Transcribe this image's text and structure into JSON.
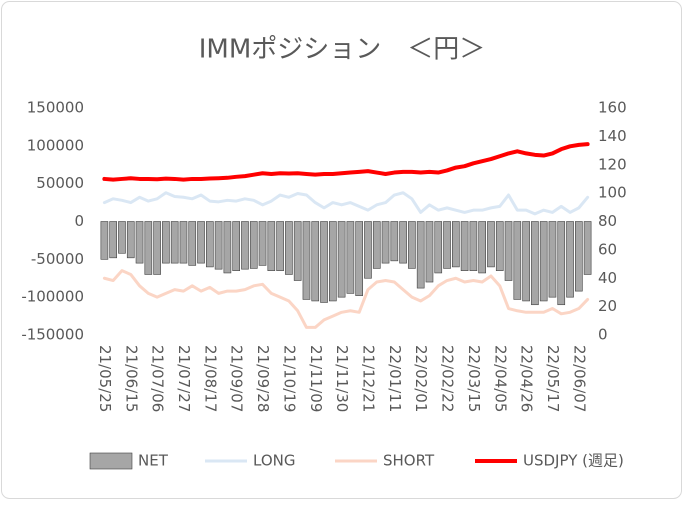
{
  "chart_data": {
    "type": "combo",
    "title": "IMMポジション　＜円＞",
    "categories": [
      "21/05/25",
      null,
      null,
      "21/06/15",
      null,
      null,
      "21/07/06",
      null,
      null,
      "21/07/27",
      null,
      null,
      "21/08/17",
      null,
      null,
      "21/09/07",
      null,
      null,
      "21/09/28",
      null,
      null,
      "21/10/19",
      null,
      null,
      "21/11/09",
      null,
      null,
      "21/11/30",
      null,
      null,
      "21/12/21",
      null,
      null,
      "22/01/11",
      null,
      null,
      "22/02/01",
      null,
      null,
      "22/02/22",
      null,
      null,
      "22/03/15",
      null,
      null,
      "22/04/05",
      null,
      null,
      "22/04/26",
      null,
      null,
      "22/05/17",
      null,
      null,
      "22/06/07",
      null
    ],
    "series": [
      {
        "name": "NET",
        "type": "bar",
        "color": "#a6a6a6",
        "values": [
          -50000,
          -48000,
          -42000,
          -48000,
          -55000,
          -70000,
          -70000,
          -55000,
          -55000,
          -55000,
          -58000,
          -55000,
          -60000,
          -63000,
          -68000,
          -65000,
          -63000,
          -62000,
          -58000,
          -65000,
          -65000,
          -70000,
          -78000,
          -103000,
          -105000,
          -107000,
          -105000,
          -100000,
          -95000,
          -98000,
          -75000,
          -62000,
          -55000,
          -52000,
          -55000,
          -62000,
          -88000,
          -80000,
          -68000,
          -62000,
          -60000,
          -65000,
          -65000,
          -68000,
          -60000,
          -65000,
          -78000,
          -103000,
          -105000,
          -110000,
          -105000,
          -100000,
          -110000,
          -100000,
          -92000,
          -70000
        ]
      },
      {
        "name": "LONG",
        "type": "line",
        "color": "#dae7f4",
        "values": [
          25000,
          30000,
          28000,
          25000,
          32000,
          27000,
          30000,
          38000,
          33000,
          32000,
          30000,
          35000,
          27000,
          26000,
          28000,
          27000,
          30000,
          28000,
          22000,
          27000,
          35000,
          32000,
          37000,
          35000,
          25000,
          18000,
          25000,
          22000,
          25000,
          20000,
          15000,
          22000,
          25000,
          35000,
          38000,
          30000,
          12000,
          22000,
          15000,
          18000,
          15000,
          12000,
          15000,
          15000,
          18000,
          20000,
          35000,
          15000,
          15000,
          10000,
          15000,
          12000,
          20000,
          12000,
          18000,
          32000
        ]
      },
      {
        "name": "SHORT",
        "type": "line",
        "color": "#fbd5c5",
        "values": [
          -75000,
          -78000,
          -65000,
          -70000,
          -85000,
          -95000,
          -100000,
          -95000,
          -90000,
          -92000,
          -85000,
          -92000,
          -87000,
          -95000,
          -92000,
          -92000,
          -90000,
          -85000,
          -83000,
          -95000,
          -100000,
          -105000,
          -118000,
          -140000,
          -140000,
          -130000,
          -125000,
          -120000,
          -118000,
          -120000,
          -90000,
          -80000,
          -78000,
          -80000,
          -90000,
          -100000,
          -105000,
          -98000,
          -85000,
          -78000,
          -75000,
          -80000,
          -78000,
          -80000,
          -72000,
          -85000,
          -115000,
          -118000,
          -120000,
          -120000,
          -120000,
          -115000,
          -122000,
          -120000,
          -115000,
          -103000
        ]
      },
      {
        "name": "USDJPY (週足)",
        "type": "line",
        "axis": "y2",
        "color": "#ff0000",
        "values": [
          110,
          109.5,
          110,
          110.5,
          110,
          110,
          109.8,
          110.2,
          110,
          109.5,
          110,
          110,
          110.3,
          110.5,
          110.8,
          111.5,
          112,
          113,
          114,
          113.5,
          114,
          113.8,
          114,
          113.5,
          113,
          113.5,
          113.5,
          114,
          114.5,
          115,
          115.5,
          114.5,
          113.5,
          114.5,
          115,
          115,
          114.5,
          115,
          114.5,
          116,
          118,
          119,
          121,
          122.5,
          124,
          126,
          128,
          129.5,
          128,
          127,
          126.5,
          128,
          131,
          133,
          134,
          134.5
        ]
      }
    ],
    "ylim": [
      -150000,
      150000
    ],
    "yticks": [
      -150000,
      -100000,
      -50000,
      0,
      50000,
      100000,
      150000
    ],
    "y2lim": [
      0,
      160
    ],
    "y2ticks": [
      0,
      20,
      40,
      60,
      80,
      100,
      120,
      140,
      160
    ],
    "grid": false,
    "legend": "bottom"
  }
}
